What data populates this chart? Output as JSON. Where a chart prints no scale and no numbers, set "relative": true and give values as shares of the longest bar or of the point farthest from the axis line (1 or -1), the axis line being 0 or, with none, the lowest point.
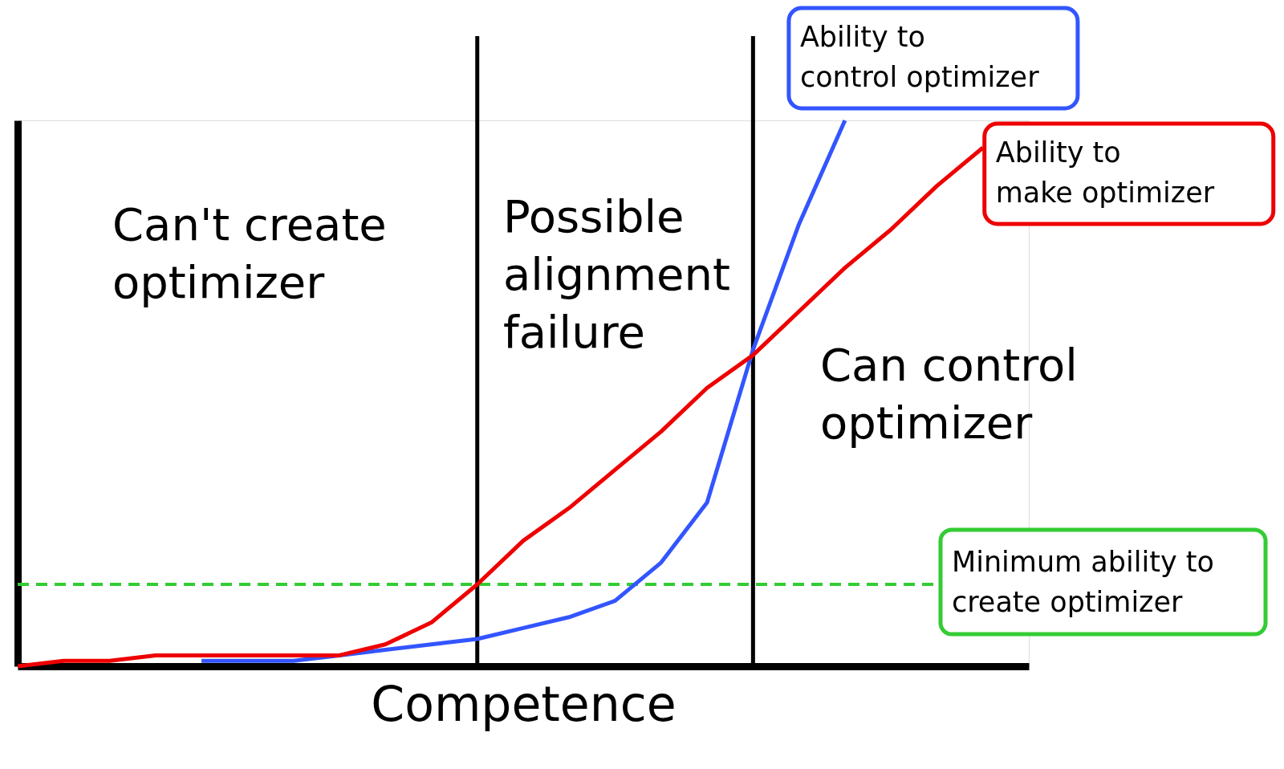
{
  "chart_data": {
    "type": "line",
    "relative": true,
    "xlabel": "Competence",
    "grid": false,
    "line_style": "solid",
    "marker": "none",
    "categories": [
      null,
      null,
      null,
      null,
      null,
      null,
      null,
      null,
      null,
      null,
      null,
      null,
      null,
      null,
      null,
      null,
      null,
      null,
      null,
      null,
      null,
      null
    ],
    "series": [
      {
        "name": "Ability  to control optimizer",
        "color": "#3355ff",
        "values": [
          null,
          null,
          null,
          null,
          0.01,
          0.01,
          0.01,
          0.02,
          0.03,
          0.04,
          0.05,
          0.07,
          0.09,
          0.12,
          0.19,
          0.3,
          0.58,
          0.81,
          1.0,
          null,
          null,
          null
        ]
      },
      {
        "name": "Ability  to make optimizer",
        "color": "#ee0000",
        "values": [
          0.0,
          0.01,
          0.01,
          0.02,
          0.02,
          0.02,
          0.02,
          0.02,
          0.04,
          0.08,
          0.15,
          0.23,
          0.29,
          0.36,
          0.43,
          0.51,
          0.57,
          0.65,
          0.73,
          0.8,
          0.88,
          0.95
        ]
      }
    ],
    "ref_lines": [
      {
        "axis": "y",
        "value": 0.15,
        "label": "Minimum ability to create optimizer",
        "color": "#33cc33",
        "line_style": "dashed"
      }
    ],
    "annotations": [
      "Can't create optimizer",
      "Possible alignment failure",
      "Can control optimizer"
    ]
  }
}
